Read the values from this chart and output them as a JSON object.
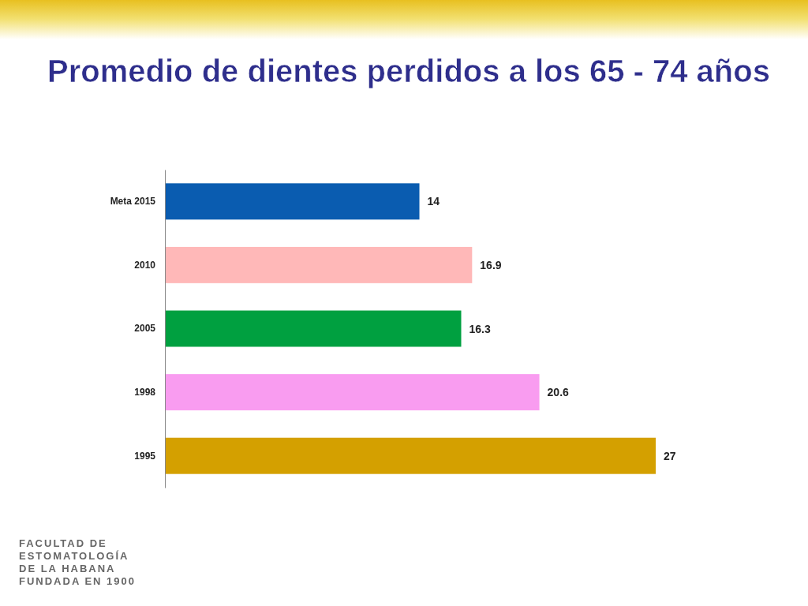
{
  "chart_data": {
    "type": "bar",
    "orientation": "horizontal",
    "title": "Promedio de dientes perdidos a los 65 - 74 años",
    "categories": [
      "Meta 2015",
      "2010",
      "2005",
      "1998",
      "1995"
    ],
    "values": [
      14,
      16.9,
      16.3,
      20.6,
      27
    ],
    "colors": [
      "#0a5cb0",
      "#ffb8b8",
      "#00a040",
      "#f99cf0",
      "#d4a000"
    ],
    "data_labels": true,
    "annotations": [
      "FACULTAD DE\nESTOMATOLOGÍA\nDE LA HABANA\nFUNDADA EN 1900"
    ]
  }
}
